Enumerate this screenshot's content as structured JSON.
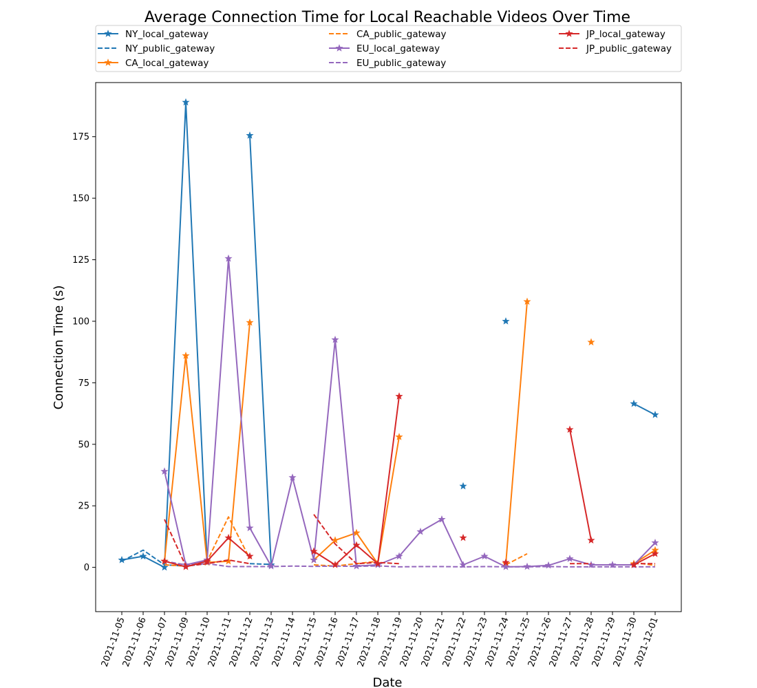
{
  "chart_data": {
    "type": "line",
    "title": "Average Connection Time for Local Reachable Videos Over Time",
    "xlabel": "Date",
    "ylabel": "Connection Time (s)",
    "ylim": [
      -18,
      197
    ],
    "yticks": [
      0,
      25,
      50,
      75,
      100,
      125,
      150,
      175
    ],
    "legend_position": "top, above plot, 3 columns",
    "grid": false,
    "categories": [
      "2021-11-05",
      "2021-11-06",
      "2021-11-07",
      "2021-11-09",
      "2021-11-10",
      "2021-11-11",
      "2021-11-12",
      "2021-11-13",
      "2021-11-14",
      "2021-11-15",
      "2021-11-16",
      "2021-11-17",
      "2021-11-18",
      "2021-11-19",
      "2021-11-20",
      "2021-11-21",
      "2021-11-22",
      "2021-11-23",
      "2021-11-24",
      "2021-11-25",
      "2021-11-26",
      "2021-11-27",
      "2021-11-28",
      "2021-11-29",
      "2021-11-30",
      "2021-12-01"
    ],
    "series": [
      {
        "name": "NY_local_gateway",
        "color": "#1f77b4",
        "style": "solid",
        "marker": "star",
        "values": [
          3,
          4.5,
          0,
          189,
          2,
          null,
          175.5,
          1,
          null,
          null,
          null,
          null,
          null,
          null,
          null,
          null,
          33,
          null,
          100,
          null,
          null,
          null,
          null,
          null,
          66.5,
          62
        ]
      },
      {
        "name": "NY_public_gateway",
        "color": "#1f77b4",
        "style": "dashed",
        "marker": "none",
        "values": [
          2.5,
          7,
          1,
          0.5,
          1.5,
          null,
          1.5,
          1.2,
          null,
          null,
          null,
          null,
          null,
          null,
          null,
          null,
          null,
          null,
          null,
          null,
          null,
          null,
          null,
          null,
          null,
          null
        ]
      },
      {
        "name": "CA_local_gateway",
        "color": "#ff7f0e",
        "style": "solid",
        "marker": "star",
        "values": [
          null,
          null,
          2.5,
          86,
          2,
          2.5,
          99.5,
          null,
          null,
          3,
          11,
          14,
          1.5,
          53,
          null,
          null,
          null,
          null,
          1.5,
          108,
          null,
          null,
          91.5,
          null,
          1.5,
          7
        ]
      },
      {
        "name": "CA_public_gateway",
        "color": "#ff7f0e",
        "style": "dashed",
        "marker": "none",
        "values": [
          null,
          null,
          1,
          0.5,
          2.5,
          20.5,
          3.5,
          null,
          null,
          1,
          0.5,
          1.5,
          2.5,
          null,
          null,
          null,
          null,
          null,
          1,
          5.5,
          null,
          null,
          null,
          null,
          2,
          0.8
        ]
      },
      {
        "name": "EU_local_gateway",
        "color": "#9467bd",
        "style": "solid",
        "marker": "star",
        "values": [
          null,
          null,
          39,
          1,
          3,
          125.5,
          16,
          0.5,
          36.5,
          3,
          92.5,
          0.5,
          1,
          4.5,
          14.5,
          19.5,
          1,
          4.5,
          0.2,
          0.3,
          0.8,
          3.5,
          1,
          1,
          1,
          10
        ]
      },
      {
        "name": "EU_public_gateway",
        "color": "#9467bd",
        "style": "dashed",
        "marker": "none",
        "values": [
          null,
          null,
          2.5,
          1,
          1.5,
          0.3,
          0.3,
          0.3,
          0.5,
          0.4,
          0.5,
          0.4,
          0.6,
          0.2,
          0.3,
          0.3,
          0.2,
          0.3,
          0.2,
          0.2,
          0.3,
          0.2,
          0.2,
          0.2,
          0.2,
          0.2
        ]
      },
      {
        "name": "JP_local_gateway",
        "color": "#d62728",
        "style": "solid",
        "marker": "star",
        "values": [
          null,
          null,
          2.5,
          0.2,
          2.5,
          12,
          4.5,
          null,
          null,
          6.5,
          1,
          9,
          1.5,
          69.5,
          null,
          null,
          12,
          null,
          2,
          null,
          null,
          56,
          11,
          null,
          1,
          5.5
        ]
      },
      {
        "name": "JP_public_gateway",
        "color": "#d62728",
        "style": "dashed",
        "marker": "none",
        "values": [
          null,
          null,
          19.5,
          0.5,
          1.5,
          3,
          1.5,
          null,
          null,
          21.5,
          9.5,
          1.5,
          2,
          1.5,
          null,
          null,
          null,
          null,
          null,
          null,
          null,
          1.5,
          1.5,
          null,
          1.5,
          1.5
        ]
      }
    ]
  }
}
